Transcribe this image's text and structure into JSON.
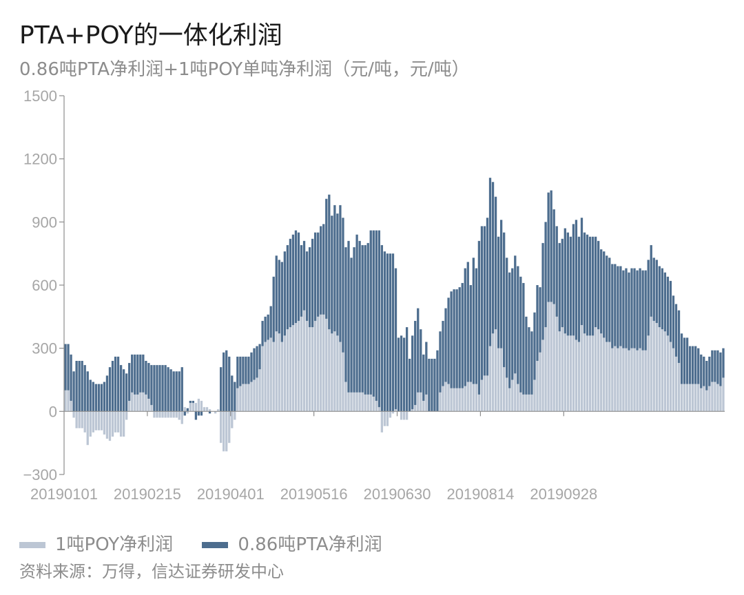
{
  "title": "PTA+POY的一体化利润",
  "subtitle": "0.86吨PTA净利润+1吨POY单吨净利润（元/吨，元/吨）",
  "legend": {
    "poy": "1吨POY净利润",
    "pta": "0.86吨PTA净利润"
  },
  "source": "资料来源：万得，信达证券研发中心",
  "colors": {
    "poy": "#bcc6d4",
    "pta": "#4d6d8e"
  },
  "chart_data": {
    "type": "bar",
    "stacked": true,
    "ylim": [
      -300,
      1500
    ],
    "yticks": [
      -300,
      0,
      300,
      600,
      900,
      1200,
      1500
    ],
    "ytick_labels": [
      "−300",
      "0",
      "300",
      "600",
      "900",
      "1200",
      "1500"
    ],
    "xtick_labels": [
      "20190101",
      "20190215",
      "20190401",
      "20190516",
      "20190630",
      "20190814",
      "20190928"
    ],
    "xtick_positions": [
      0,
      30,
      60,
      90,
      120,
      150,
      180
    ],
    "series": [
      {
        "name": "1吨POY净利润",
        "values": [
          100,
          100,
          50,
          -30,
          -80,
          -80,
          -80,
          -100,
          -160,
          -120,
          -100,
          -90,
          -90,
          -90,
          -110,
          -130,
          -140,
          -120,
          -100,
          -100,
          -120,
          -120,
          -40,
          50,
          90,
          80,
          80,
          90,
          90,
          80,
          60,
          30,
          -30,
          -30,
          -30,
          -30,
          -30,
          -30,
          -30,
          -30,
          -30,
          -40,
          -60,
          20,
          -10,
          40,
          40,
          40,
          60,
          50,
          20,
          20,
          10,
          0,
          -10,
          10,
          -150,
          -190,
          -190,
          -150,
          -80,
          -40,
          110,
          120,
          130,
          130,
          130,
          140,
          150,
          160,
          200,
          310,
          330,
          340,
          350,
          330,
          380,
          370,
          330,
          360,
          390,
          400,
          410,
          420,
          430,
          450,
          480,
          430,
          400,
          400,
          430,
          450,
          460,
          460,
          440,
          390,
          370,
          380,
          360,
          330,
          280,
          140,
          90,
          90,
          90,
          90,
          90,
          90,
          80,
          80,
          80,
          70,
          50,
          20,
          -100,
          -70,
          -70,
          -30,
          -10,
          10,
          0,
          -40,
          -40,
          -40,
          0,
          10,
          30,
          90,
          90,
          50,
          80,
          0,
          0,
          0,
          0,
          90,
          120,
          140,
          130,
          110,
          110,
          110,
          110,
          110,
          120,
          140,
          140,
          130,
          130,
          80,
          150,
          170,
          170,
          310,
          370,
          390,
          300,
          300,
          210,
          160,
          110,
          150,
          180,
          130,
          90,
          80,
          80,
          80,
          80,
          150,
          240,
          280,
          340,
          400,
          520,
          520,
          510,
          450,
          380,
          400,
          370,
          360,
          360,
          360,
          340,
          330,
          410,
          370,
          360,
          360,
          360,
          400,
          390,
          370,
          350,
          330,
          330,
          300,
          310,
          300,
          310,
          300,
          300,
          290,
          300,
          300,
          290,
          300,
          290,
          290,
          360,
          450,
          430,
          420,
          400,
          390,
          380,
          360,
          330,
          300,
          260,
          230,
          130,
          130,
          130,
          130,
          130,
          130,
          130,
          110,
          120,
          100,
          120,
          140,
          140,
          130,
          120,
          160
        ]
      },
      {
        "name": "0.86吨PTA净利润",
        "values": [
          220,
          220,
          220,
          190,
          240,
          240,
          240,
          220,
          190,
          150,
          140,
          130,
          130,
          130,
          140,
          170,
          210,
          240,
          260,
          260,
          220,
          200,
          180,
          180,
          180,
          190,
          190,
          180,
          180,
          160,
          170,
          190,
          220,
          220,
          220,
          220,
          220,
          210,
          200,
          190,
          190,
          190,
          210,
          -20,
          15,
          10,
          10,
          -40,
          -20,
          -20,
          0,
          0,
          -10,
          0,
          0,
          0,
          210,
          280,
          290,
          260,
          170,
          140,
          150,
          140,
          130,
          130,
          130,
          140,
          150,
          150,
          120,
          120,
          120,
          120,
          150,
          310,
          360,
          350,
          380,
          400,
          400,
          420,
          430,
          440,
          420,
          340,
          330,
          330,
          380,
          420,
          420,
          400,
          420,
          430,
          570,
          640,
          560,
          600,
          580,
          650,
          640,
          640,
          720,
          640,
          690,
          750,
          720,
          700,
          710,
          720,
          780,
          790,
          810,
          840,
          790,
          760,
          750,
          750,
          750,
          670,
          350,
          360,
          350,
          400,
          250,
          350,
          400,
          400,
          300,
          220,
          250,
          250,
          250,
          250,
          290,
          290,
          310,
          350,
          410,
          460,
          470,
          470,
          480,
          500,
          560,
          570,
          460,
          600,
          550,
          730,
          730,
          710,
          750,
          800,
          720,
          630,
          530,
          610,
          640,
          570,
          550,
          530,
          560,
          560,
          550,
          530,
          370,
          320,
          300,
          320,
          360,
          310,
          460,
          500,
          520,
          530,
          450,
          430,
          420,
          420,
          500,
          490,
          470,
          530,
          570,
          500,
          510,
          480,
          480,
          470,
          470,
          430,
          420,
          400,
          410,
          410,
          400,
          400,
          390,
          390,
          380,
          370,
          380,
          370,
          380,
          380,
          380,
          380,
          380,
          380,
          360,
          340,
          300,
          300,
          290,
          290,
          280,
          280,
          290,
          250,
          250,
          250,
          240,
          220,
          220,
          180,
          180,
          180,
          170,
          160,
          140,
          140,
          140,
          150,
          150,
          160,
          160,
          140,
          130,
          110,
          130,
          130,
          100,
          150
        ]
      }
    ]
  }
}
